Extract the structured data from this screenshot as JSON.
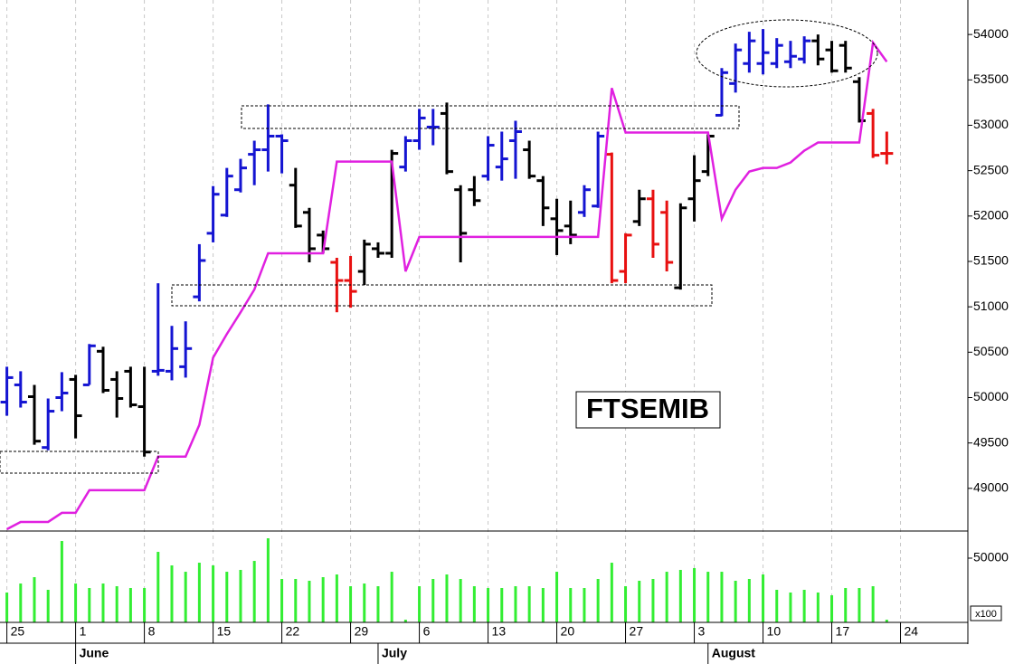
{
  "chart_data": {
    "type": "ohlc",
    "annotation": "FTSEMIB",
    "xlim": [
      -0.5,
      69.9
    ],
    "xticks": [
      {
        "value": 0,
        "label": "25"
      },
      {
        "value": 5,
        "label": "1"
      },
      {
        "value": 10,
        "label": "8"
      },
      {
        "value": 15,
        "label": "15"
      },
      {
        "value": 20,
        "label": "22"
      },
      {
        "value": 25,
        "label": "29"
      },
      {
        "value": 30,
        "label": "6"
      },
      {
        "value": 35,
        "label": "13"
      },
      {
        "value": 40,
        "label": "20"
      },
      {
        "value": 45,
        "label": "27"
      },
      {
        "value": 50,
        "label": "3"
      },
      {
        "value": 55,
        "label": "10"
      },
      {
        "value": 60,
        "label": "17"
      },
      {
        "value": 65,
        "label": "24"
      }
    ],
    "month_ticks": [
      {
        "value": 5,
        "label": "June"
      },
      {
        "value": 27,
        "label": "July"
      },
      {
        "value": 51,
        "label": "August"
      }
    ],
    "ylim": [
      48530,
      54380
    ],
    "yticks": [
      49000,
      49500,
      50000,
      50500,
      51000,
      51500,
      52000,
      52500,
      53000,
      53500,
      54000
    ],
    "grid": true,
    "high": [
      50340,
      50290,
      50140,
      49990,
      50280,
      50250,
      50590,
      50560,
      50290,
      50340,
      50340,
      51260,
      50790,
      50840,
      51690,
      52330,
      52530,
      52630,
      52830,
      53230,
      52900,
      52530,
      52090,
      51840,
      51540,
      51560,
      51740,
      51710,
      52730,
      52880,
      53180,
      53180,
      53250,
      52340,
      52440,
      52880,
      52930,
      53050,
      52830,
      52440,
      52190,
      52170,
      52340,
      52930,
      52700,
      51810,
      52290,
      52290,
      52170,
      52140,
      52670,
      52900,
      53630,
      53900,
      54030,
      54060,
      53960,
      53930,
      53980,
      54000,
      53930,
      53930,
      53530,
      53180,
      52930
    ],
    "low": [
      49800,
      49890,
      49480,
      49420,
      49850,
      49550,
      50140,
      50050,
      49780,
      49890,
      49350,
      50240,
      50190,
      50220,
      51060,
      51710,
      51990,
      52260,
      52340,
      52490,
      52470,
      51870,
      51490,
      51590,
      50940,
      50990,
      51240,
      51540,
      51540,
      52490,
      52730,
      52780,
      52460,
      51490,
      52110,
      52390,
      52390,
      52410,
      52410,
      51890,
      51570,
      51690,
      51990,
      52090,
      51260,
      51260,
      51890,
      51540,
      51390,
      51190,
      51940,
      52440,
      53100,
      53360,
      53580,
      53560,
      53630,
      53630,
      53680,
      53660,
      53580,
      53580,
      53030,
      52640,
      52570
    ],
    "open": [
      49950,
      50140,
      50010,
      49450,
      50000,
      50200,
      50140,
      50510,
      50200,
      50290,
      49900,
      50290,
      50290,
      50340,
      51110,
      51810,
      52010,
      52290,
      52680,
      52730,
      52880,
      52340,
      52040,
      51790,
      51490,
      51290,
      51390,
      51640,
      51590,
      52540,
      52830,
      52980,
      53130,
      52290,
      52290,
      52440,
      52540,
      52830,
      52730,
      52390,
      51970,
      51890,
      52040,
      52110,
      52680,
      51390,
      51940,
      52190,
      52040,
      51210,
      52190,
      52490,
      53110,
      53460,
      53680,
      53680,
      53680,
      53700,
      53730,
      53930,
      53830,
      53880,
      53480,
      53130,
      52690
    ],
    "close": [
      50220,
      49950,
      49520,
      49850,
      50050,
      49800,
      50570,
      50080,
      49990,
      49920,
      49400,
      50300,
      50540,
      50540,
      51510,
      52240,
      52440,
      52530,
      52730,
      52880,
      52830,
      51890,
      51640,
      51640,
      51290,
      51170,
      51690,
      51590,
      52690,
      52830,
      53080,
      52980,
      52490,
      51810,
      52170,
      52780,
      52630,
      52930,
      52440,
      52090,
      51840,
      51790,
      52290,
      52880,
      51290,
      51790,
      52190,
      51690,
      51490,
      52090,
      52390,
      52880,
      53580,
      53830,
      53930,
      53800,
      53880,
      53760,
      53930,
      53730,
      53600,
      53630,
      53050,
      52670,
      52690
    ],
    "colors": [
      "#1414d2",
      "#1414d2",
      "#000000",
      "#1414d2",
      "#1414d2",
      "#000000",
      "#1414d2",
      "#000000",
      "#000000",
      "#000000",
      "#000000",
      "#1414d2",
      "#1414d2",
      "#1414d2",
      "#1414d2",
      "#1414d2",
      "#1414d2",
      "#1414d2",
      "#1414d2",
      "#1414d2",
      "#1414d2",
      "#000000",
      "#000000",
      "#000000",
      "#e81010",
      "#e81010",
      "#000000",
      "#000000",
      "#000000",
      "#1414d2",
      "#1414d2",
      "#1414d2",
      "#000000",
      "#000000",
      "#000000",
      "#1414d2",
      "#1414d2",
      "#1414d2",
      "#000000",
      "#000000",
      "#000000",
      "#000000",
      "#1414d2",
      "#1414d2",
      "#e81010",
      "#e81010",
      "#000000",
      "#e81010",
      "#e81010",
      "#000000",
      "#000000",
      "#000000",
      "#1414d2",
      "#1414d2",
      "#1414d2",
      "#1414d2",
      "#1414d2",
      "#1414d2",
      "#1414d2",
      "#000000",
      "#000000",
      "#000000",
      "#000000",
      "#e81010",
      "#e81010"
    ],
    "overlay": {
      "color": "#e020e0",
      "values": [
        48550,
        48630,
        48630,
        48630,
        48730,
        48730,
        48980,
        48980,
        48980,
        48980,
        48980,
        49350,
        49350,
        49350,
        49700,
        50440,
        50700,
        50940,
        51190,
        51590,
        51590,
        51590,
        51590,
        51590,
        52600,
        52600,
        52600,
        52600,
        52600,
        51390,
        51770,
        51770,
        51770,
        51770,
        51770,
        51770,
        51770,
        51770,
        51770,
        51770,
        51770,
        51770,
        51770,
        51770,
        53410,
        52920,
        52920,
        52920,
        52920,
        52920,
        52920,
        52920,
        51970,
        52290,
        52490,
        52530,
        52530,
        52590,
        52720,
        52810,
        52810,
        52810,
        52810,
        53910,
        53700
      ]
    },
    "volume": {
      "color": "#33ee33",
      "unit": "x100",
      "ylim": [
        40000,
        53800
      ],
      "yticks": [
        50000
      ],
      "values": [
        44650,
        46050,
        47040,
        45070,
        52670,
        46050,
        45350,
        46050,
        45630,
        45350,
        45350,
        50980,
        48870,
        47880,
        49290,
        48870,
        47880,
        48170,
        49570,
        53090,
        46760,
        46760,
        46480,
        47040,
        47460,
        45630,
        46050,
        45630,
        47880,
        40420,
        45630,
        46760,
        47460,
        46760,
        45630,
        45350,
        45350,
        45630,
        45630,
        45350,
        47880,
        45350,
        45350,
        46760,
        49290,
        45630,
        46480,
        46760,
        47880,
        48170,
        48450,
        47880,
        47880,
        46480,
        46760,
        47460,
        45070,
        44650,
        45070,
        44650,
        44220,
        45350,
        45350,
        45630,
        40420
      ]
    }
  }
}
